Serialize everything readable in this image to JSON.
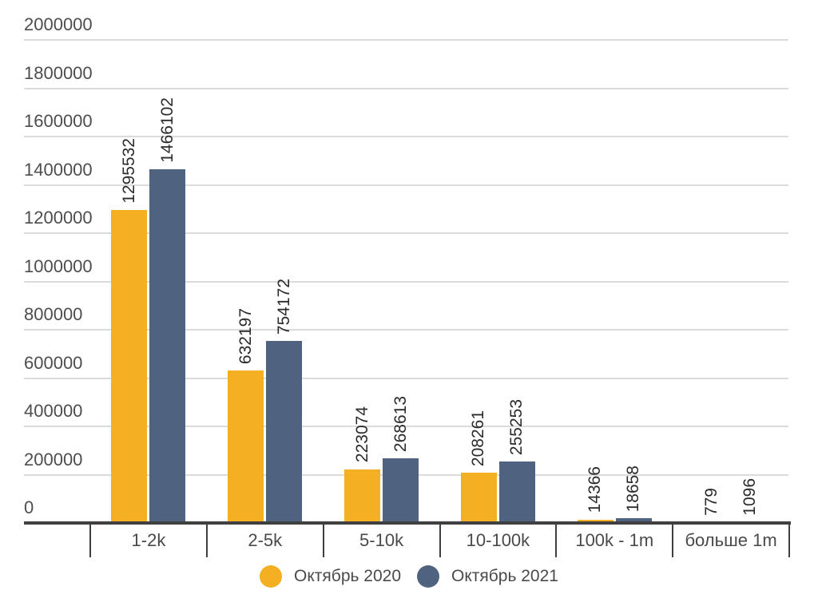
{
  "chart_data": {
    "type": "bar",
    "title": "",
    "categories": [
      "1-2k",
      "2-5k",
      "5-10k",
      "10-100k",
      "100k - 1m",
      "больше 1m"
    ],
    "series": [
      {
        "name": "Октябрь 2020",
        "color": "#F5AF23",
        "values": [
          1295532,
          632197,
          223074,
          208261,
          14366,
          779
        ]
      },
      {
        "name": "Октябрь 2021",
        "color": "#4F6380",
        "values": [
          1466102,
          754172,
          268613,
          255253,
          18658,
          1096
        ]
      }
    ],
    "ylim": [
      0,
      2000000
    ],
    "y_tick_step": 200000,
    "y_tick_labels": [
      "0",
      "200000",
      "400000",
      "600000",
      "800000",
      "1000000",
      "1200000",
      "1400000",
      "1600000",
      "1800000",
      "2000000"
    ],
    "grid": "horizontal",
    "legend_position": "bottom",
    "value_labels_rotated_vertical": true,
    "colors": {
      "grid": "#DBDBDB",
      "axis": "#404040",
      "y_tick_label": "#4D4D4D",
      "category_label": "#4A4A4A",
      "value_label": "#2B2B2B",
      "legend_text": "#4A4A4A",
      "background": "#FFFFFF"
    }
  }
}
